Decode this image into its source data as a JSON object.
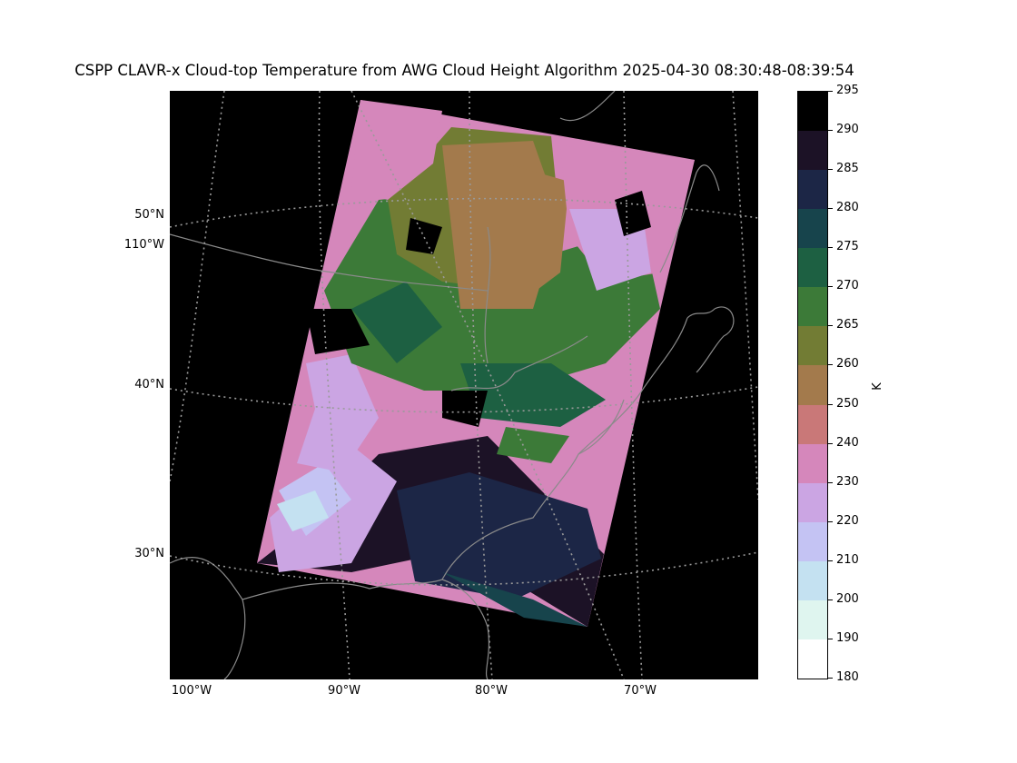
{
  "title": "CSPP CLAVR-x Cloud-top Temperature from AWG Cloud Height Algorithm 2025-04-30 08:30:48-08:39:54",
  "map": {
    "lat_labels": [
      "50°N",
      "40°N",
      "30°N"
    ],
    "lon_left_label": "110°W",
    "lon_labels": [
      "100°W",
      "90°W",
      "80°W",
      "70°W"
    ],
    "gridline_color": "#9a9a9a",
    "coastline_color": "#8a8a8a"
  },
  "colorbar": {
    "unit": "K",
    "range": [
      180,
      295
    ],
    "ticks": [
      "295",
      "290",
      "285",
      "280",
      "275",
      "270",
      "265",
      "260",
      "250",
      "240",
      "230",
      "220",
      "210",
      "200",
      "190",
      "180"
    ],
    "colors": [
      "#000000",
      "#1c1226",
      "#1c2646",
      "#17444c",
      "#1d6042",
      "#3c7a38",
      "#727c34",
      "#a37a4c",
      "#c97878",
      "#d587bb",
      "#cba5e3",
      "#c4c3f3",
      "#c4e1f1",
      "#dff5ef",
      "#ffffff"
    ]
  }
}
